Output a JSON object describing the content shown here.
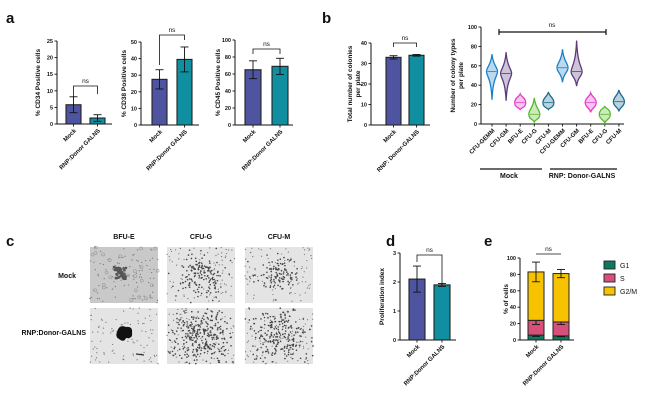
{
  "colors": {
    "mock": "#4e549f",
    "rnp": "#0f8f9f",
    "g1": "#0d7a5f",
    "s": "#d8507a",
    "g2m": "#f7c300"
  },
  "chart_data": [
    {
      "panel": "a",
      "type": "bar",
      "ylabel": "% CD34 Positive cells",
      "ylim": [
        0,
        25
      ],
      "ticks": [
        0,
        5,
        10,
        15,
        20,
        25
      ],
      "categories": [
        "Mock",
        "RNP:Donor GALNS"
      ],
      "values": [
        5.8,
        1.8
      ],
      "errors": [
        2.4,
        1.0
      ],
      "annotation": "ns"
    },
    {
      "panel": "a",
      "type": "bar",
      "ylabel": "% CD38  Positive cells",
      "ylim": [
        0,
        50
      ],
      "ticks": [
        0,
        10,
        20,
        30,
        40,
        50
      ],
      "categories": [
        "Mock",
        "RNP:Donor GALNS"
      ],
      "values": [
        27.5,
        39.5
      ],
      "errors": [
        5.8,
        7.5
      ],
      "annotation": "ns"
    },
    {
      "panel": "a",
      "type": "bar",
      "ylabel": "% CD45  Positive cells",
      "ylim": [
        0,
        100
      ],
      "ticks": [
        0,
        20,
        40,
        60,
        80,
        100
      ],
      "categories": [
        "Mock",
        "RNP:Donor GALNS"
      ],
      "values": [
        65,
        69
      ],
      "errors": [
        10.5,
        9.5
      ],
      "annotation": "ns"
    },
    {
      "panel": "b",
      "type": "bar",
      "ylabel": [
        "Total number of colonies",
        "per plate"
      ],
      "ylim": [
        0,
        40
      ],
      "ticks": [
        0,
        10,
        20,
        30,
        40
      ],
      "categories": [
        "Mock",
        "RNP: Donor-GALNS"
      ],
      "values": [
        33,
        34
      ],
      "errors": [
        0.8,
        0.4
      ],
      "annotation": "ns"
    },
    {
      "panel": "b",
      "type": "violin",
      "ylabel": [
        "Number of colony types",
        "per plate"
      ],
      "ylim": [
        0,
        100
      ],
      "ticks": [
        0,
        20,
        40,
        60,
        80,
        100
      ],
      "categories": [
        "CFU-GEMM",
        "CFU-GM",
        "BFU-E",
        "CFU-G",
        "CFU-M",
        "CFU-GEMM",
        "CFU-GM",
        "BFU-E",
        "CFU-G",
        "CFU-M"
      ],
      "groups": [
        "Mock",
        "RNP: Donor-GALNS"
      ],
      "series": [
        {
          "name": "CFU-GEMM",
          "group": "Mock",
          "median": 54,
          "min": 25,
          "max": 72,
          "color": "#1b80c8"
        },
        {
          "name": "CFU-GM",
          "group": "Mock",
          "median": 52,
          "min": 24,
          "max": 74,
          "color": "#5c3a7e"
        },
        {
          "name": "BFU-E",
          "group": "Mock",
          "median": 22,
          "min": 15,
          "max": 31,
          "color": "#e03fc8"
        },
        {
          "name": "CFU-G",
          "group": "Mock",
          "median": 10,
          "min": 2,
          "max": 27,
          "color": "#58b82a"
        },
        {
          "name": "CFU-M",
          "group": "Mock",
          "median": 22,
          "min": 15,
          "max": 33,
          "color": "#1a6b8c"
        },
        {
          "name": "CFU-GEMM",
          "group": "RNP: Donor-GALNS",
          "median": 58,
          "min": 43,
          "max": 77,
          "color": "#1b80c8"
        },
        {
          "name": "CFU-GM",
          "group": "RNP: Donor-GALNS",
          "median": 54,
          "min": 39,
          "max": 86,
          "color": "#5c3a7e"
        },
        {
          "name": "BFU-E",
          "group": "RNP: Donor-GALNS",
          "median": 22,
          "min": 12,
          "max": 32,
          "color": "#e03fc8"
        },
        {
          "name": "CFU-G",
          "group": "RNP: Donor-GALNS",
          "median": 10,
          "min": 1,
          "max": 18,
          "color": "#58b82a"
        },
        {
          "name": "CFU-M",
          "group": "RNP: Donor-GALNS",
          "median": 23,
          "min": 13,
          "max": 35,
          "color": "#1a6b8c"
        }
      ],
      "annotation": "ns"
    },
    {
      "panel": "d",
      "type": "bar",
      "ylabel": "Proliferation index",
      "ylim": [
        0,
        3
      ],
      "ticks": [
        0,
        1,
        2,
        3
      ],
      "categories": [
        "Mock",
        "RNP:Donor GALNS"
      ],
      "values": [
        2.1,
        1.9
      ],
      "errors": [
        0.45,
        0.05
      ],
      "annotation": "ns"
    },
    {
      "panel": "e",
      "type": "bar",
      "stacked": true,
      "ylabel": "% of cells",
      "ylim": [
        0,
        100
      ],
      "ticks": [
        0,
        20,
        40,
        60,
        80,
        100
      ],
      "categories": [
        "Mock",
        "RNP:Donor GALNS"
      ],
      "series": [
        {
          "name": "G1",
          "values": [
            6,
            5
          ],
          "errors": [
            1.5,
            1.0
          ]
        },
        {
          "name": "S",
          "values": [
            18,
            17
          ],
          "errors": [
            5,
            3
          ]
        },
        {
          "name": "G2/M",
          "values": [
            59,
            59
          ],
          "errors": [
            12,
            5
          ]
        }
      ],
      "legend": "right",
      "annotation": "ns"
    }
  ],
  "panel_c": {
    "columns": [
      "BFU-E",
      "CFU-G",
      "CFU-M"
    ],
    "rows": [
      "Mock",
      "RNP:Donor-GALNS"
    ]
  },
  "panel_labels": [
    "a",
    "b",
    "c",
    "d",
    "e"
  ]
}
